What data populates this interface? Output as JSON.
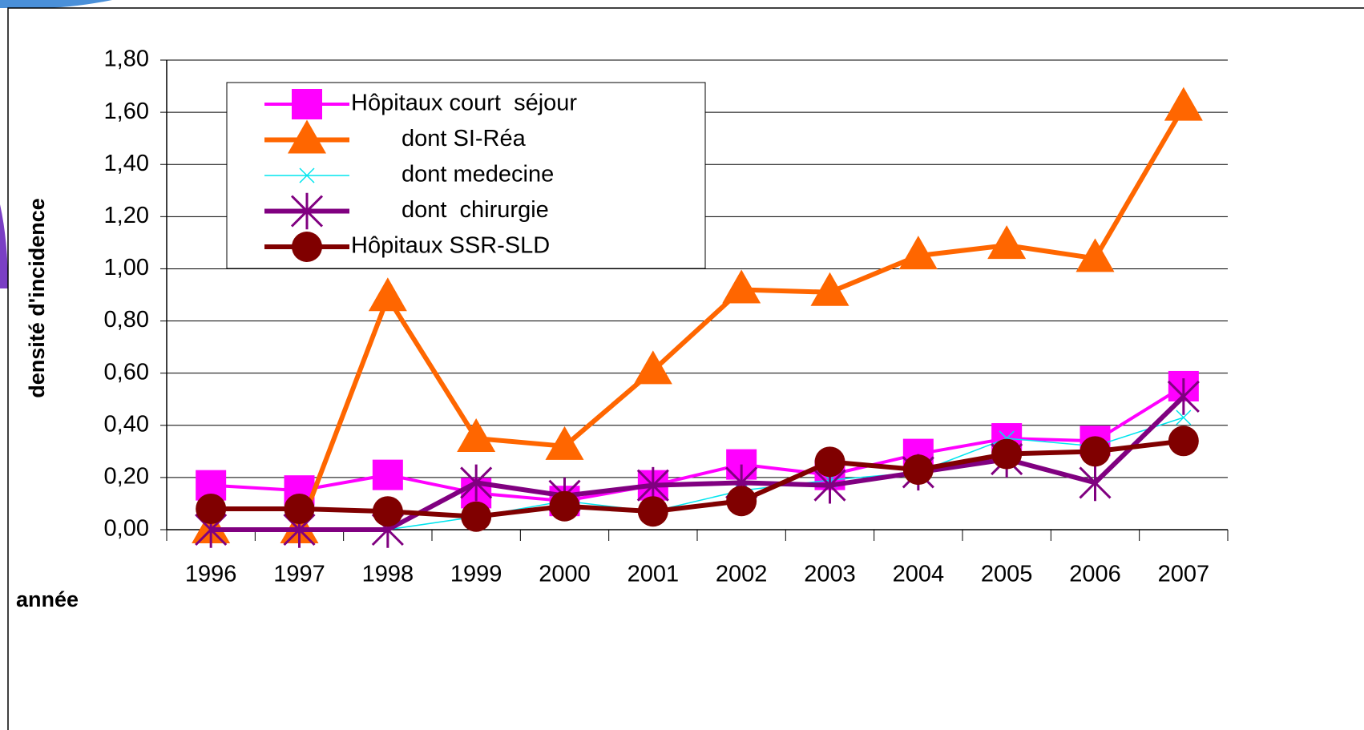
{
  "chart_data": {
    "type": "line",
    "y_label": "densité d'incidence",
    "x_label": "année",
    "categories": [
      "1996",
      "1997",
      "1998",
      "1999",
      "2000",
      "2001",
      "2002",
      "2003",
      "2004",
      "2005",
      "2006",
      "2007"
    ],
    "ylim": [
      0,
      1.8
    ],
    "yticks": [
      {
        "value": 0,
        "label": "0,00"
      },
      {
        "value": 0.2,
        "label": "0,20"
      },
      {
        "value": 0.4,
        "label": "0,40"
      },
      {
        "value": 0.6,
        "label": "0,60"
      },
      {
        "value": 0.8,
        "label": "0,80"
      },
      {
        "value": 1.0,
        "label": "1,00"
      },
      {
        "value": 1.2,
        "label": "1,20"
      },
      {
        "value": 1.4,
        "label": "1,40"
      },
      {
        "value": 1.6,
        "label": "1,60"
      },
      {
        "value": 1.8,
        "label": "1,80"
      }
    ],
    "grid": true,
    "legend": "upper left",
    "series": [
      {
        "name": "Hôpitaux court  séjour",
        "color": "#ff00ff",
        "marker": "square",
        "values": [
          0.17,
          0.15,
          0.21,
          0.14,
          0.11,
          0.17,
          0.25,
          0.21,
          0.29,
          0.35,
          0.34,
          0.55
        ]
      },
      {
        "name": "dont SI-Réa",
        "color": "#ff6600",
        "marker": "triangle",
        "values": [
          0,
          0,
          0.89,
          0.35,
          0.32,
          0.61,
          0.92,
          0.91,
          1.05,
          1.09,
          1.04,
          1.62
        ]
      },
      {
        "name": "dont medecine",
        "color": "#00e5ee",
        "marker": "x",
        "values": [
          0,
          0,
          0,
          0.05,
          0.11,
          0.07,
          0.15,
          0.19,
          0.22,
          0.35,
          0.32,
          0.43
        ]
      },
      {
        "name": "dont  chirurgie",
        "color": "#800080",
        "marker": "star",
        "values": [
          0,
          0,
          0,
          0.18,
          0.13,
          0.17,
          0.18,
          0.17,
          0.22,
          0.27,
          0.18,
          0.51
        ]
      },
      {
        "name": "Hôpitaux SSR-SLD",
        "color": "#800000",
        "marker": "circle",
        "values": [
          0.08,
          0.08,
          0.07,
          0.05,
          0.09,
          0.07,
          0.11,
          0.26,
          0.23,
          0.29,
          0.3,
          0.34
        ]
      }
    ]
  }
}
